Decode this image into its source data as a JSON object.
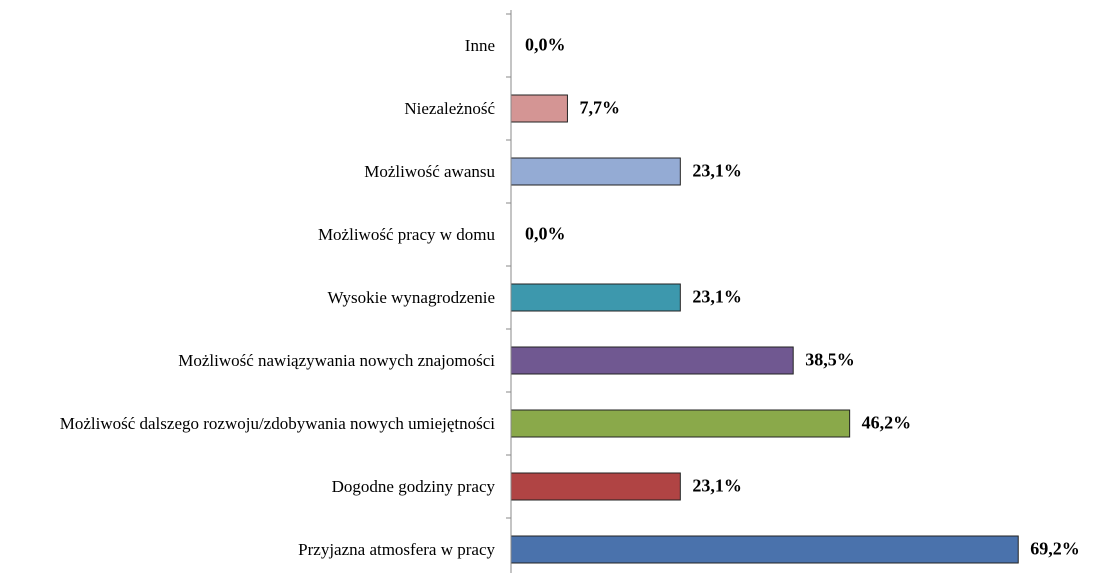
{
  "chart_data": {
    "type": "bar",
    "orientation": "horizontal",
    "categories": [
      "Inne",
      "Niezależność",
      "Możliwość awansu",
      "Możliwość pracy w domu",
      "Wysokie wynagrodzenie",
      "Możliwość nawiązywania nowych znajomości",
      "Możliwość dalszego rozwoju/zdobywania nowych umiejętności",
      "Dogodne godziny pracy",
      "Przyjazna atmosfera w pracy"
    ],
    "values": [
      0.0,
      7.7,
      23.1,
      0.0,
      23.1,
      38.5,
      46.2,
      23.1,
      69.2
    ],
    "value_labels": [
      "0,0%",
      "7,7%",
      "23,1%",
      "0,0%",
      "23,1%",
      "38,5%",
      "46,2%",
      "23,1%",
      "69,2%"
    ],
    "colors": [
      "#b7c9e3",
      "#d49594",
      "#94abd4",
      "#f09640",
      "#3d98ad",
      "#705891",
      "#8aa94a",
      "#b04444",
      "#4a72ac"
    ],
    "xlim": [
      0,
      80
    ]
  }
}
